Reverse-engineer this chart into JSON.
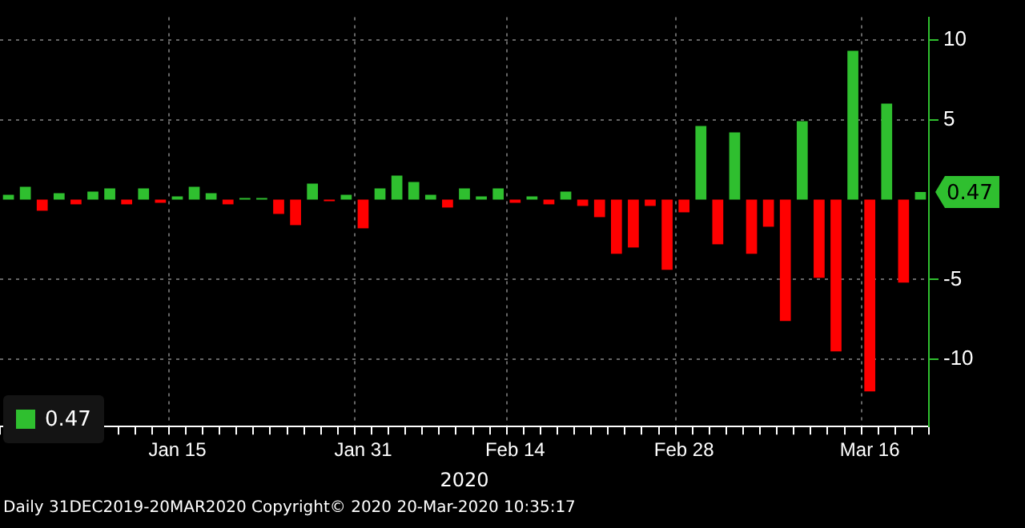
{
  "chart_data": {
    "type": "bar",
    "xlabel": "2020",
    "categories": [
      null,
      null,
      null,
      null,
      null,
      null,
      null,
      null,
      null,
      null,
      "Jan 15",
      null,
      null,
      null,
      null,
      null,
      null,
      null,
      null,
      null,
      null,
      "Jan 31",
      null,
      null,
      null,
      null,
      null,
      null,
      null,
      null,
      "Feb 14",
      null,
      null,
      null,
      null,
      null,
      null,
      null,
      null,
      null,
      "Feb 28",
      null,
      null,
      null,
      null,
      null,
      null,
      null,
      null,
      null,
      null,
      "Mar 16",
      null,
      null,
      null
    ],
    "values": [
      0.3,
      0.8,
      -0.7,
      0.4,
      -0.3,
      0.5,
      0.7,
      -0.3,
      0.7,
      -0.2,
      0.2,
      0.8,
      0.4,
      -0.3,
      0.1,
      0.1,
      -0.9,
      -1.6,
      1.0,
      -0.1,
      0.3,
      -1.8,
      0.7,
      1.5,
      1.1,
      0.3,
      -0.5,
      0.7,
      0.2,
      0.7,
      -0.2,
      0.2,
      -0.3,
      0.5,
      -0.4,
      -1.1,
      -3.4,
      -3.0,
      -0.4,
      -4.4,
      -0.8,
      4.6,
      -2.8,
      4.2,
      -3.4,
      -1.7,
      -7.6,
      4.9,
      -4.9,
      -9.5,
      9.3,
      -12.0,
      6.0,
      -5.2,
      0.47
    ],
    "colors": [
      "#2fbf2f",
      "#2fbf2f",
      "#ff0000",
      "#2fbf2f",
      "#ff0000",
      "#2fbf2f",
      "#2fbf2f",
      "#ff0000",
      "#2fbf2f",
      "#ff0000",
      "#2fbf2f",
      "#2fbf2f",
      "#2fbf2f",
      "#ff0000",
      "#2fbf2f",
      "#2fbf2f",
      "#ff0000",
      "#ff0000",
      "#2fbf2f",
      "#ff0000",
      "#2fbf2f",
      "#ff0000",
      "#2fbf2f",
      "#2fbf2f",
      "#2fbf2f",
      "#2fbf2f",
      "#ff0000",
      "#2fbf2f",
      "#2fbf2f",
      "#2fbf2f",
      "#ff0000",
      "#2fbf2f",
      "#ff0000",
      "#2fbf2f",
      "#ff0000",
      "#ff0000",
      "#ff0000",
      "#ff0000",
      "#ff0000",
      "#ff0000",
      "#ff0000",
      "#2fbf2f",
      "#ff0000",
      "#2fbf2f",
      "#ff0000",
      "#ff0000",
      "#ff0000",
      "#2fbf2f",
      "#ff0000",
      "#ff0000",
      "#2fbf2f",
      "#ff0000",
      "#2fbf2f",
      "#ff0000",
      "#2fbf2f"
    ],
    "ylim": [
      -14.2,
      11.4
    ],
    "yticks": [
      10,
      5,
      -5,
      -10
    ],
    "grid": true,
    "legend": false,
    "annotations": [
      "0.47",
      "0.47",
      "Daily 31DEC2019-20MAR2020 Copyright© 2020 20-Mar-2020 10:35:17"
    ]
  }
}
